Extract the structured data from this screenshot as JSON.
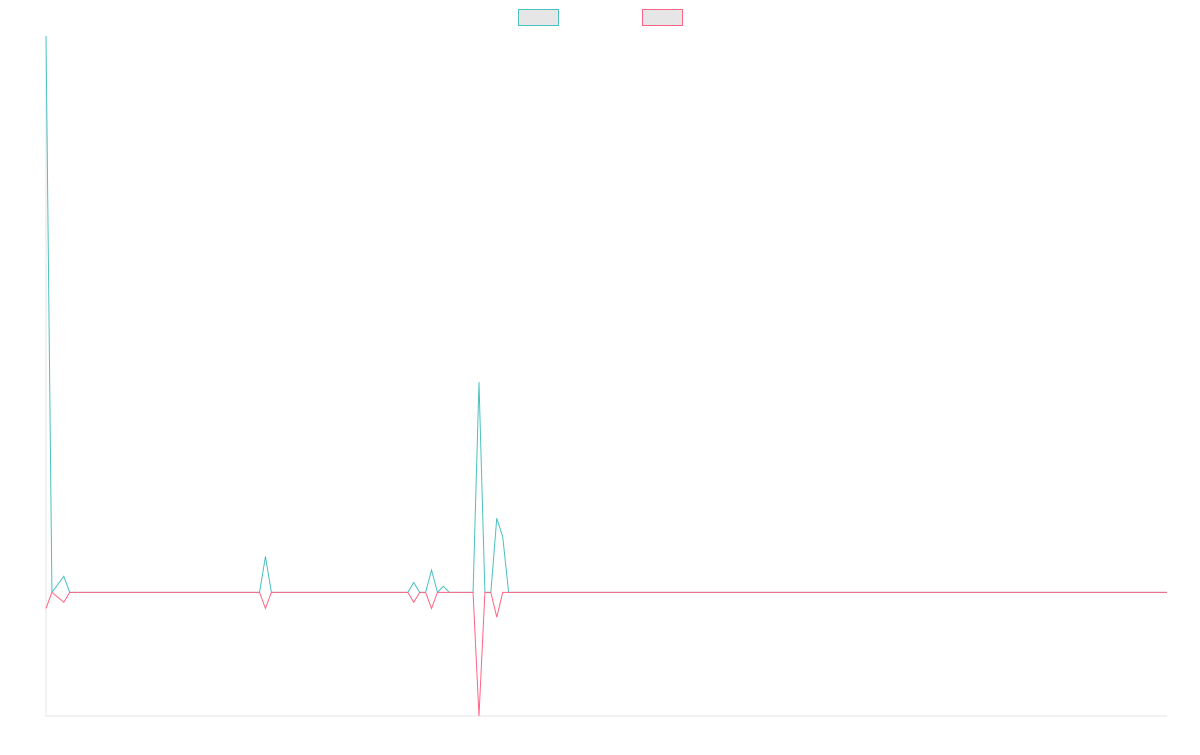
{
  "chart_data": {
    "type": "line",
    "title": "",
    "xlabel": "",
    "ylabel": "",
    "grid": false,
    "legend_position": "top-center",
    "x_count": 190,
    "ylim": [
      -1,
      4.5
    ],
    "series": [
      {
        "name": "",
        "color": "#4bc0c0",
        "fill": "#e6e6e6",
        "points": [
          [
            0,
            4.5
          ],
          [
            1,
            0
          ],
          [
            3,
            0.13
          ],
          [
            4,
            0
          ],
          [
            36,
            0
          ],
          [
            37,
            0.29
          ],
          [
            38,
            0
          ],
          [
            61,
            0
          ],
          [
            62,
            0.08
          ],
          [
            63,
            0
          ],
          [
            64,
            0
          ],
          [
            65,
            0.18
          ],
          [
            66,
            0
          ],
          [
            67,
            0.05
          ],
          [
            68,
            0
          ],
          [
            72,
            0
          ],
          [
            73,
            1.7
          ],
          [
            74,
            0
          ],
          [
            75,
            0
          ],
          [
            76,
            0.6
          ],
          [
            77,
            0.45
          ],
          [
            78,
            0
          ],
          [
            189,
            0
          ]
        ]
      },
      {
        "name": "",
        "color": "#ff6384",
        "fill": "#e6e6e6",
        "points": [
          [
            0,
            -0.13
          ],
          [
            1,
            0
          ],
          [
            3,
            -0.08
          ],
          [
            4,
            0
          ],
          [
            36,
            0
          ],
          [
            37,
            -0.13
          ],
          [
            38,
            0
          ],
          [
            61,
            0
          ],
          [
            62,
            -0.08
          ],
          [
            63,
            0
          ],
          [
            64,
            0
          ],
          [
            65,
            -0.13
          ],
          [
            66,
            0
          ],
          [
            72,
            0
          ],
          [
            73,
            -1.0
          ],
          [
            74,
            0
          ],
          [
            75,
            0
          ],
          [
            76,
            -0.2
          ],
          [
            77,
            0
          ],
          [
            189,
            0
          ]
        ]
      }
    ]
  }
}
